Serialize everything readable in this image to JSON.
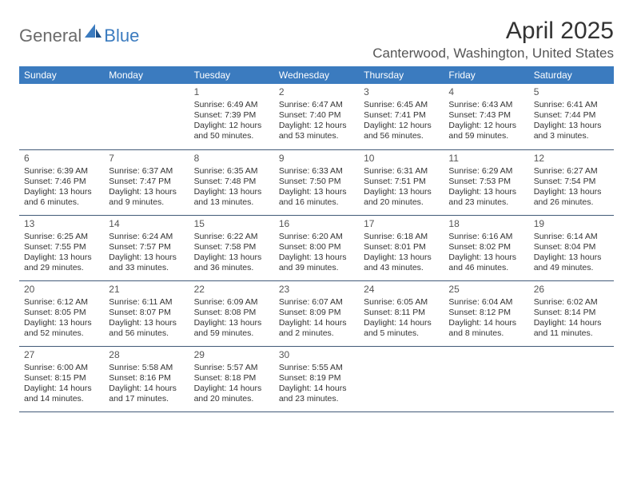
{
  "logo": {
    "text1": "General",
    "text2": "Blue"
  },
  "title": "April 2025",
  "location": "Canterwood, Washington, United States",
  "colors": {
    "header_bg": "#3b7bbf",
    "header_fg": "#ffffff",
    "cell_border": "#425a78",
    "logo_gray": "#6b6b6b",
    "logo_blue": "#3b7bbf",
    "text": "#333333"
  },
  "day_headers": [
    "Sunday",
    "Monday",
    "Tuesday",
    "Wednesday",
    "Thursday",
    "Friday",
    "Saturday"
  ],
  "weeks": [
    [
      null,
      null,
      {
        "n": "1",
        "sr": "Sunrise: 6:49 AM",
        "ss": "Sunset: 7:39 PM",
        "dl": "Daylight: 12 hours and 50 minutes."
      },
      {
        "n": "2",
        "sr": "Sunrise: 6:47 AM",
        "ss": "Sunset: 7:40 PM",
        "dl": "Daylight: 12 hours and 53 minutes."
      },
      {
        "n": "3",
        "sr": "Sunrise: 6:45 AM",
        "ss": "Sunset: 7:41 PM",
        "dl": "Daylight: 12 hours and 56 minutes."
      },
      {
        "n": "4",
        "sr": "Sunrise: 6:43 AM",
        "ss": "Sunset: 7:43 PM",
        "dl": "Daylight: 12 hours and 59 minutes."
      },
      {
        "n": "5",
        "sr": "Sunrise: 6:41 AM",
        "ss": "Sunset: 7:44 PM",
        "dl": "Daylight: 13 hours and 3 minutes."
      }
    ],
    [
      {
        "n": "6",
        "sr": "Sunrise: 6:39 AM",
        "ss": "Sunset: 7:46 PM",
        "dl": "Daylight: 13 hours and 6 minutes."
      },
      {
        "n": "7",
        "sr": "Sunrise: 6:37 AM",
        "ss": "Sunset: 7:47 PM",
        "dl": "Daylight: 13 hours and 9 minutes."
      },
      {
        "n": "8",
        "sr": "Sunrise: 6:35 AM",
        "ss": "Sunset: 7:48 PM",
        "dl": "Daylight: 13 hours and 13 minutes."
      },
      {
        "n": "9",
        "sr": "Sunrise: 6:33 AM",
        "ss": "Sunset: 7:50 PM",
        "dl": "Daylight: 13 hours and 16 minutes."
      },
      {
        "n": "10",
        "sr": "Sunrise: 6:31 AM",
        "ss": "Sunset: 7:51 PM",
        "dl": "Daylight: 13 hours and 20 minutes."
      },
      {
        "n": "11",
        "sr": "Sunrise: 6:29 AM",
        "ss": "Sunset: 7:53 PM",
        "dl": "Daylight: 13 hours and 23 minutes."
      },
      {
        "n": "12",
        "sr": "Sunrise: 6:27 AM",
        "ss": "Sunset: 7:54 PM",
        "dl": "Daylight: 13 hours and 26 minutes."
      }
    ],
    [
      {
        "n": "13",
        "sr": "Sunrise: 6:25 AM",
        "ss": "Sunset: 7:55 PM",
        "dl": "Daylight: 13 hours and 29 minutes."
      },
      {
        "n": "14",
        "sr": "Sunrise: 6:24 AM",
        "ss": "Sunset: 7:57 PM",
        "dl": "Daylight: 13 hours and 33 minutes."
      },
      {
        "n": "15",
        "sr": "Sunrise: 6:22 AM",
        "ss": "Sunset: 7:58 PM",
        "dl": "Daylight: 13 hours and 36 minutes."
      },
      {
        "n": "16",
        "sr": "Sunrise: 6:20 AM",
        "ss": "Sunset: 8:00 PM",
        "dl": "Daylight: 13 hours and 39 minutes."
      },
      {
        "n": "17",
        "sr": "Sunrise: 6:18 AM",
        "ss": "Sunset: 8:01 PM",
        "dl": "Daylight: 13 hours and 43 minutes."
      },
      {
        "n": "18",
        "sr": "Sunrise: 6:16 AM",
        "ss": "Sunset: 8:02 PM",
        "dl": "Daylight: 13 hours and 46 minutes."
      },
      {
        "n": "19",
        "sr": "Sunrise: 6:14 AM",
        "ss": "Sunset: 8:04 PM",
        "dl": "Daylight: 13 hours and 49 minutes."
      }
    ],
    [
      {
        "n": "20",
        "sr": "Sunrise: 6:12 AM",
        "ss": "Sunset: 8:05 PM",
        "dl": "Daylight: 13 hours and 52 minutes."
      },
      {
        "n": "21",
        "sr": "Sunrise: 6:11 AM",
        "ss": "Sunset: 8:07 PM",
        "dl": "Daylight: 13 hours and 56 minutes."
      },
      {
        "n": "22",
        "sr": "Sunrise: 6:09 AM",
        "ss": "Sunset: 8:08 PM",
        "dl": "Daylight: 13 hours and 59 minutes."
      },
      {
        "n": "23",
        "sr": "Sunrise: 6:07 AM",
        "ss": "Sunset: 8:09 PM",
        "dl": "Daylight: 14 hours and 2 minutes."
      },
      {
        "n": "24",
        "sr": "Sunrise: 6:05 AM",
        "ss": "Sunset: 8:11 PM",
        "dl": "Daylight: 14 hours and 5 minutes."
      },
      {
        "n": "25",
        "sr": "Sunrise: 6:04 AM",
        "ss": "Sunset: 8:12 PM",
        "dl": "Daylight: 14 hours and 8 minutes."
      },
      {
        "n": "26",
        "sr": "Sunrise: 6:02 AM",
        "ss": "Sunset: 8:14 PM",
        "dl": "Daylight: 14 hours and 11 minutes."
      }
    ],
    [
      {
        "n": "27",
        "sr": "Sunrise: 6:00 AM",
        "ss": "Sunset: 8:15 PM",
        "dl": "Daylight: 14 hours and 14 minutes."
      },
      {
        "n": "28",
        "sr": "Sunrise: 5:58 AM",
        "ss": "Sunset: 8:16 PM",
        "dl": "Daylight: 14 hours and 17 minutes."
      },
      {
        "n": "29",
        "sr": "Sunrise: 5:57 AM",
        "ss": "Sunset: 8:18 PM",
        "dl": "Daylight: 14 hours and 20 minutes."
      },
      {
        "n": "30",
        "sr": "Sunrise: 5:55 AM",
        "ss": "Sunset: 8:19 PM",
        "dl": "Daylight: 14 hours and 23 minutes."
      },
      null,
      null,
      null
    ]
  ]
}
